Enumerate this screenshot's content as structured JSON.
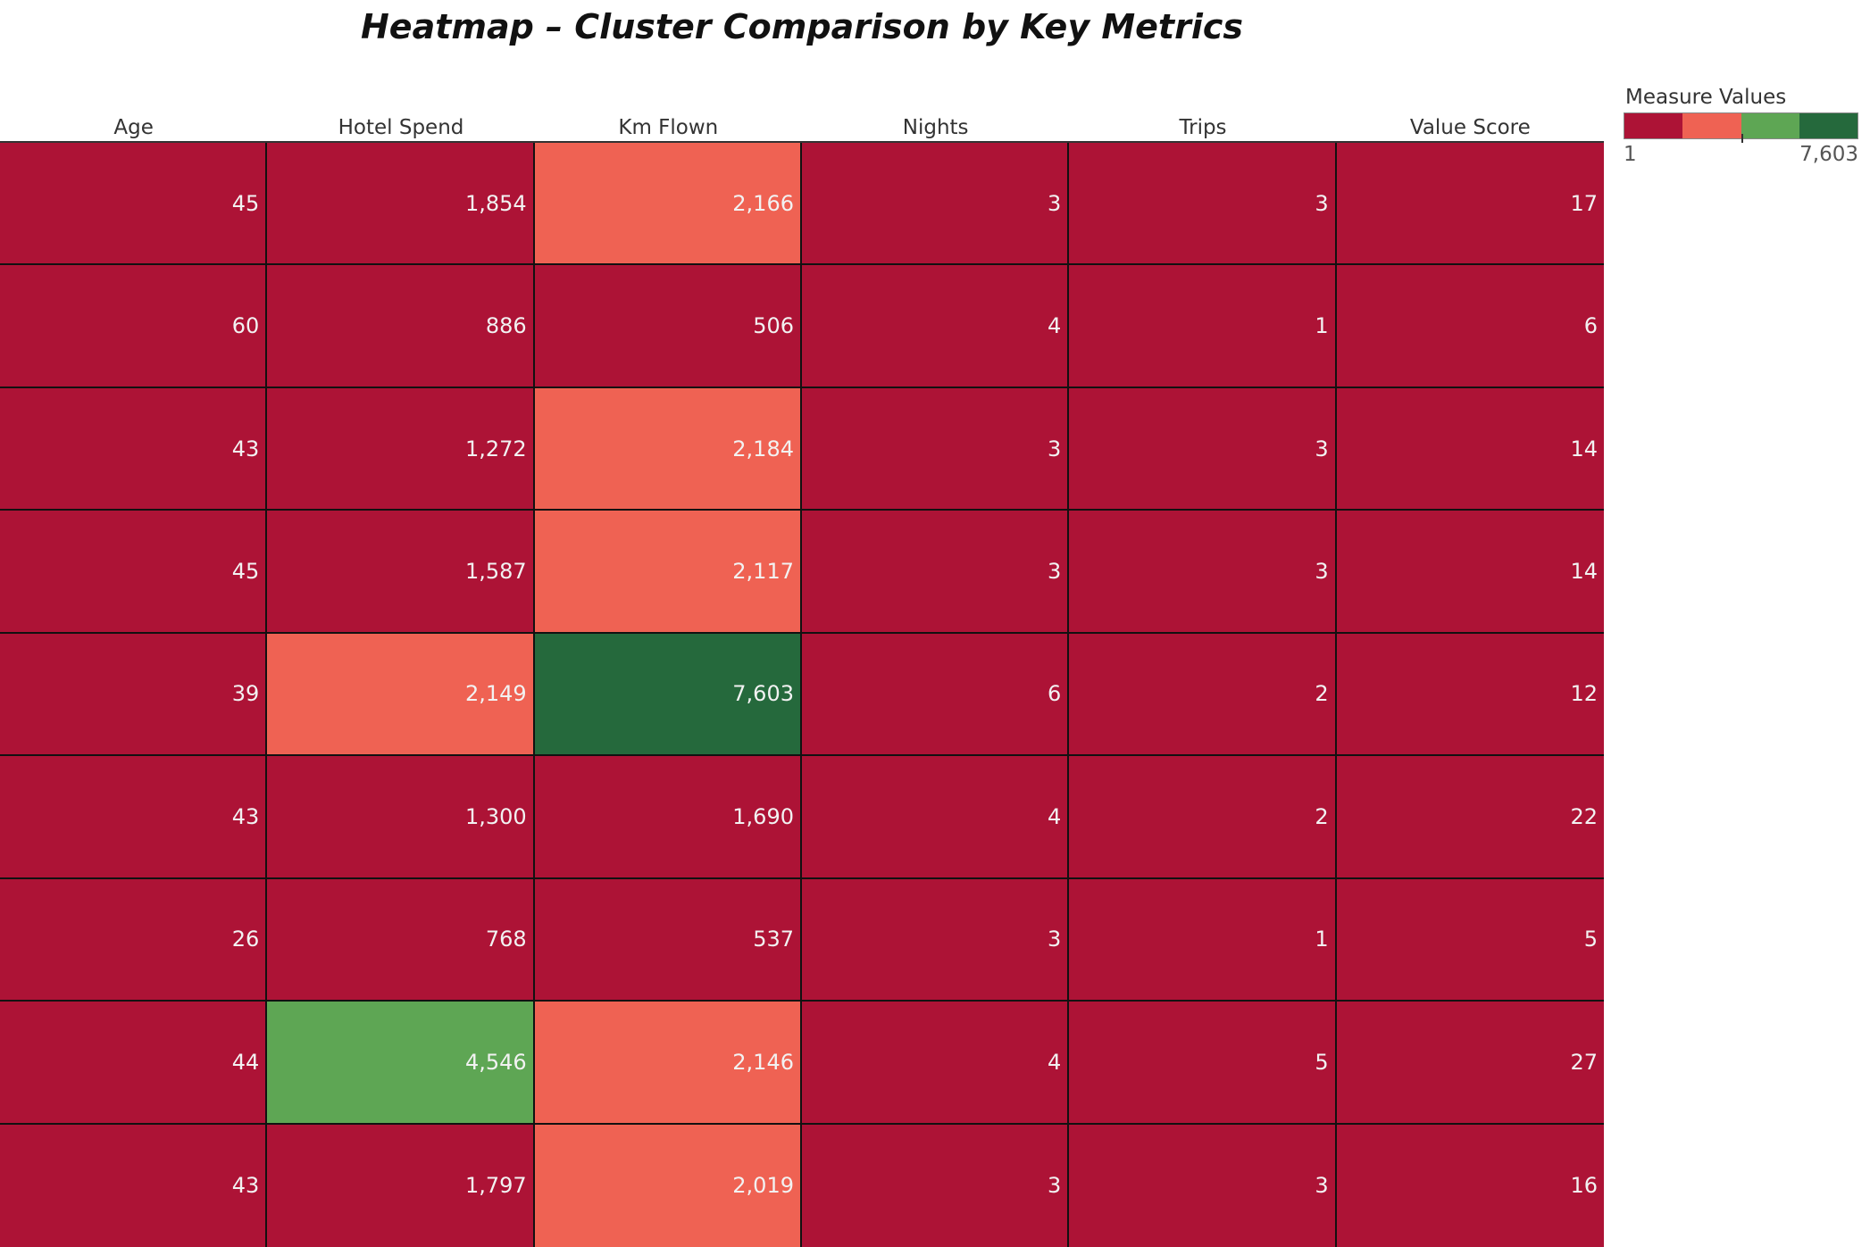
{
  "chart_data": {
    "type": "heatmap",
    "title": "Heatmap – Cluster Comparison by Key Metrics",
    "columns": [
      "Age",
      "Hotel Spend",
      "Km Flown",
      "Nights",
      "Trips",
      "Value Score"
    ],
    "rows": [
      [
        "45",
        "1,854",
        "2,166",
        "3",
        "3",
        "17"
      ],
      [
        "60",
        "886",
        "506",
        "4",
        "1",
        "6"
      ],
      [
        "43",
        "1,272",
        "2,184",
        "3",
        "3",
        "14"
      ],
      [
        "45",
        "1,587",
        "2,117",
        "3",
        "3",
        "14"
      ],
      [
        "39",
        "2,149",
        "7,603",
        "6",
        "2",
        "12"
      ],
      [
        "43",
        "1,300",
        "1,690",
        "4",
        "2",
        "22"
      ],
      [
        "26",
        "768",
        "537",
        "3",
        "1",
        "5"
      ],
      [
        "44",
        "4,546",
        "2,146",
        "4",
        "5",
        "27"
      ],
      [
        "43",
        "1,797",
        "2,019",
        "3",
        "3",
        "16"
      ]
    ],
    "color_scale": {
      "title": "Measure Values",
      "min_label": "1",
      "max_label": "7,603",
      "min": 1,
      "max": 7603,
      "colors": [
        "#ad1336",
        "#ef6253",
        "#5ea654",
        "#25693c"
      ]
    }
  }
}
